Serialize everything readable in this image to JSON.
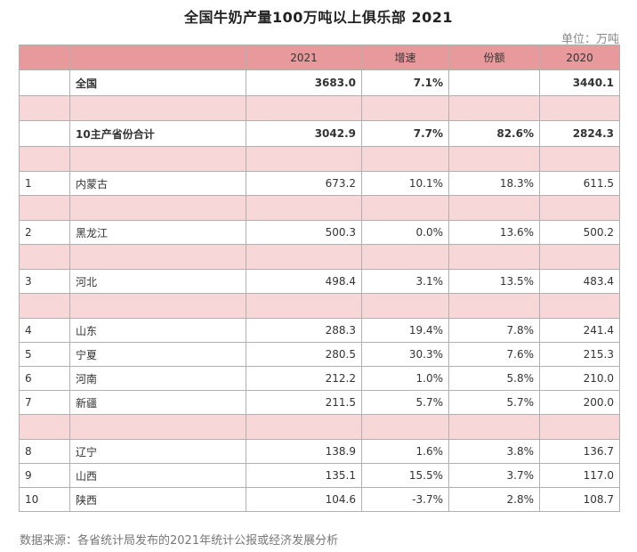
{
  "title": "全国牛奶产量100万吨以上俱乐部 2021",
  "unit": "单位：万吨",
  "headers": [
    "",
    "",
    "2021",
    "增速",
    "份额",
    "2020"
  ],
  "summary": [
    {
      "name": "全国",
      "v2021": "3683.0",
      "growth": "7.1%",
      "share": "",
      "v2020": "3440.1"
    },
    {
      "name": "10主产省份合计",
      "v2021": "3042.9",
      "growth": "7.7%",
      "share": "82.6%",
      "v2020": "2824.3"
    }
  ],
  "provinces": [
    {
      "rank": "1",
      "name": "内蒙古",
      "v2021": "673.2",
      "growth": "10.1%",
      "share": "18.3%",
      "v2020": "611.5"
    },
    {
      "rank": "2",
      "name": "黑龙江",
      "v2021": "500.3",
      "growth": "0.0%",
      "share": "13.6%",
      "v2020": "500.2"
    },
    {
      "rank": "3",
      "name": "河北",
      "v2021": "498.4",
      "growth": "3.1%",
      "share": "13.5%",
      "v2020": "483.4"
    },
    {
      "rank": "4",
      "name": "山东",
      "v2021": "288.3",
      "growth": "19.4%",
      "share": "7.8%",
      "v2020": "241.4"
    },
    {
      "rank": "5",
      "name": "宁夏",
      "v2021": "280.5",
      "growth": "30.3%",
      "share": "7.6%",
      "v2020": "215.3"
    },
    {
      "rank": "6",
      "name": "河南",
      "v2021": "212.2",
      "growth": "1.0%",
      "share": "5.8%",
      "v2020": "210.0"
    },
    {
      "rank": "7",
      "name": "新疆",
      "v2021": "211.5",
      "growth": "5.7%",
      "share": "5.7%",
      "v2020": "200.0"
    },
    {
      "rank": "8",
      "name": "辽宁",
      "v2021": "138.9",
      "growth": "1.6%",
      "share": "3.8%",
      "v2020": "136.7"
    },
    {
      "rank": "9",
      "name": "山西",
      "v2021": "135.1",
      "growth": "15.5%",
      "share": "3.7%",
      "v2020": "117.0"
    },
    {
      "rank": "10",
      "name": "陕西",
      "v2021": "104.6",
      "growth": "-3.7%",
      "share": "2.8%",
      "v2020": "108.7"
    }
  ],
  "source": "数据来源：各省统计局发布的2021年统计公报或经济发展分析",
  "colors": {
    "header": "#e8999b",
    "spacer": "#f8d7d9",
    "border": "#b0b0b0"
  }
}
